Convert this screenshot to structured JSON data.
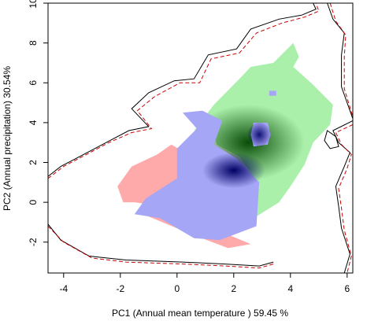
{
  "chart_data": {
    "type": "density-overlap",
    "xlabel": "PC1 (Annual mean temperature ) 59.45 %",
    "ylabel": "PC2 (Annual precipitation) 30.54%",
    "xlim": [
      -4.55,
      6.2
    ],
    "ylim": [
      -3.55,
      10.0
    ],
    "xticks": [
      -4,
      -2,
      0,
      2,
      4,
      6
    ],
    "yticks": [
      -2,
      0,
      2,
      4,
      6,
      8,
      10
    ],
    "colors": {
      "species_a_only": "#ffaaaa",
      "species_b_only": "#aaf0aa",
      "overlap": "#a6a6f6",
      "overlap_dense": "#000066",
      "species_b_dense": "#004400",
      "background_solid": "#000000",
      "background_dashed": "#cc0000"
    },
    "regions": {
      "species_a_only": [
        [
          -2.1,
          0.8
        ],
        [
          -1.6,
          1.8
        ],
        [
          -0.7,
          2.4
        ],
        [
          -0.2,
          2.9
        ],
        [
          0.4,
          2.4
        ],
        [
          0.1,
          0.6
        ],
        [
          -1.2,
          -0.6
        ],
        [
          0.5,
          -1.6
        ],
        [
          1.8,
          -2.3
        ],
        [
          2.6,
          -2.1
        ],
        [
          1.6,
          -1.5
        ],
        [
          0,
          -0.3
        ],
        [
          -1.5,
          0
        ],
        [
          -1.9,
          0
        ]
      ],
      "species_b_only": [
        [
          0.6,
          3.6
        ],
        [
          1.3,
          4.9
        ],
        [
          2.2,
          6.2
        ],
        [
          2.6,
          6.8
        ],
        [
          3.4,
          7.0
        ],
        [
          4.1,
          8.0
        ],
        [
          4.3,
          7.3
        ],
        [
          4.1,
          6.8
        ],
        [
          4.8,
          5.9
        ],
        [
          5.5,
          4.9
        ],
        [
          5.4,
          3.9
        ],
        [
          4.8,
          3.0
        ],
        [
          4.5,
          1.9
        ],
        [
          4.0,
          0.8
        ],
        [
          3.6,
          0.0
        ],
        [
          2.7,
          -0.8
        ],
        [
          1.9,
          -1.4
        ],
        [
          2.6,
          -1.0
        ],
        [
          2.9,
          0.8
        ],
        [
          2.2,
          2.3
        ],
        [
          1.4,
          2.9
        ],
        [
          1.2,
          3.9
        ]
      ],
      "overlap": [
        [
          0.2,
          4.5
        ],
        [
          0.9,
          4.6
        ],
        [
          1.6,
          4.1
        ],
        [
          1.3,
          2.9
        ],
        [
          2.1,
          2.2
        ],
        [
          2.9,
          1.0
        ],
        [
          2.8,
          -1.2
        ],
        [
          1.5,
          -1.9
        ],
        [
          0.6,
          -1.8
        ],
        [
          -0.6,
          -0.8
        ],
        [
          -1.5,
          -0.6
        ],
        [
          -1.1,
          0.2
        ],
        [
          0.0,
          1.2
        ],
        [
          0.0,
          2.7
        ],
        [
          0.7,
          3.7
        ]
      ]
    },
    "background_contours": {
      "solid": [
        [
          [
            -4.55,
            1.3
          ],
          [
            -4.1,
            1.8
          ],
          [
            -3.3,
            2.4
          ],
          [
            -2.5,
            3.0
          ],
          [
            -1.7,
            3.6
          ],
          [
            -1.0,
            3.8
          ],
          [
            -1.6,
            4.7
          ],
          [
            -1.0,
            5.5
          ],
          [
            -0.1,
            6.1
          ],
          [
            0.6,
            6.2
          ],
          [
            1.1,
            7.4
          ],
          [
            2.1,
            7.7
          ],
          [
            2.6,
            8.7
          ],
          [
            3.6,
            9.2
          ],
          [
            4.4,
            9.4
          ],
          [
            4.9,
            9.7
          ],
          [
            4.8,
            10.0
          ]
        ],
        [
          [
            -4.55,
            -1.1
          ],
          [
            -4.1,
            -1.9
          ],
          [
            -3.1,
            -2.7
          ],
          [
            -1.8,
            -2.9
          ],
          [
            0.2,
            -3.0
          ],
          [
            1.7,
            -3.1
          ],
          [
            2.9,
            -3.2
          ],
          [
            3.4,
            -3.0
          ]
        ],
        [
          [
            5.3,
            10.0
          ],
          [
            5.5,
            9.2
          ],
          [
            5.9,
            8.5
          ],
          [
            5.8,
            7.4
          ],
          [
            5.8,
            6.5
          ],
          [
            5.8,
            5.8
          ],
          [
            6.2,
            4.2
          ]
        ],
        [
          [
            6.2,
            4.1
          ],
          [
            5.5,
            3.6
          ],
          [
            5.7,
            3.0
          ],
          [
            6.1,
            2.5
          ],
          [
            5.9,
            1.8
          ],
          [
            5.6,
            0.8
          ],
          [
            5.7,
            -0.2
          ],
          [
            5.8,
            -1.3
          ],
          [
            6.1,
            -2.6
          ],
          [
            5.9,
            -3.55
          ]
        ]
      ],
      "dashed": [
        [
          [
            -4.55,
            1.2
          ],
          [
            -4.0,
            1.8
          ],
          [
            -3.2,
            2.4
          ],
          [
            -2.4,
            3.0
          ],
          [
            -1.6,
            3.5
          ],
          [
            -0.9,
            3.7
          ],
          [
            -1.4,
            4.6
          ],
          [
            -0.8,
            5.3
          ],
          [
            0.1,
            6.0
          ],
          [
            0.8,
            6.0
          ],
          [
            1.2,
            7.2
          ],
          [
            2.2,
            7.5
          ],
          [
            2.8,
            8.5
          ],
          [
            3.7,
            9.0
          ],
          [
            4.5,
            9.3
          ],
          [
            5.0,
            9.6
          ],
          [
            4.9,
            10.0
          ]
        ],
        [
          [
            -4.55,
            -1.2
          ],
          [
            -4.0,
            -2.0
          ],
          [
            -3.0,
            -2.8
          ],
          [
            -1.8,
            -3.0
          ],
          [
            0.2,
            -3.1
          ],
          [
            1.7,
            -3.2
          ],
          [
            2.9,
            -3.3
          ],
          [
            3.4,
            -3.1
          ]
        ],
        [
          [
            5.4,
            10.0
          ],
          [
            5.6,
            9.1
          ],
          [
            5.95,
            8.4
          ],
          [
            5.9,
            7.3
          ],
          [
            5.9,
            6.4
          ],
          [
            5.9,
            5.7
          ],
          [
            6.2,
            4.3
          ]
        ],
        [
          [
            6.2,
            3.9
          ],
          [
            5.6,
            3.5
          ],
          [
            5.8,
            2.9
          ],
          [
            6.15,
            2.4
          ],
          [
            6.0,
            1.7
          ],
          [
            5.7,
            0.7
          ],
          [
            5.8,
            -0.3
          ],
          [
            5.9,
            -1.4
          ],
          [
            6.15,
            -2.7
          ],
          [
            6.0,
            -3.55
          ]
        ]
      ],
      "small_loop": [
        [
          5.3,
          3.6
        ],
        [
          5.6,
          3.3
        ],
        [
          5.7,
          2.8
        ],
        [
          5.4,
          2.7
        ],
        [
          5.2,
          3.1
        ],
        [
          5.3,
          3.6
        ]
      ]
    },
    "dense_cores": [
      {
        "name": "overlap-core",
        "cx": 2.0,
        "cy": 1.6,
        "rx": 1.1,
        "ry": 0.9,
        "color": "#000066"
      },
      {
        "name": "species-b-core",
        "cx": 2.5,
        "cy": 3.0,
        "rx": 2.0,
        "ry": 1.9,
        "color": "#004400"
      },
      {
        "name": "overlap-patch-core",
        "cx": 2.9,
        "cy": 3.4,
        "rx": 0.4,
        "ry": 0.6,
        "color": "#000066"
      }
    ],
    "overlap_patches": [
      [
        [
          2.7,
          4.0
        ],
        [
          3.2,
          4.0
        ],
        [
          3.3,
          3.4
        ],
        [
          3.2,
          2.9
        ],
        [
          2.7,
          2.8
        ],
        [
          2.6,
          3.4
        ]
      ],
      [
        [
          3.25,
          5.6
        ],
        [
          3.5,
          5.6
        ],
        [
          3.5,
          5.35
        ],
        [
          3.25,
          5.35
        ]
      ]
    ]
  }
}
